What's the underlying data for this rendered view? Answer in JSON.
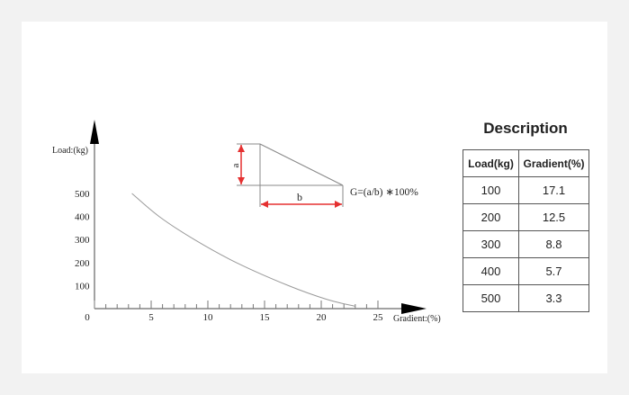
{
  "chart_data": {
    "type": "line",
    "xlabel": "Gradient:(%)",
    "ylabel": "Load:(kg)",
    "x_ticks": [
      "0",
      "5",
      "10",
      "15",
      "20",
      "25"
    ],
    "y_ticks": [
      "100",
      "200",
      "300",
      "400",
      "500"
    ],
    "xlim": [
      0,
      25
    ],
    "ylim": [
      0,
      500
    ],
    "series": [
      {
        "x": [
          3.3,
          5.7,
          8.8,
          12.5,
          17.1,
          20.5,
          23.0
        ],
        "y": [
          500,
          400,
          300,
          200,
          100,
          40,
          10
        ]
      }
    ]
  },
  "formula": {
    "label_a": "a",
    "label_b": "b",
    "text": "G=(a/b) ∗100%"
  },
  "description": {
    "title": "Description",
    "headers": [
      "Load(kg)",
      "Gradient(%)"
    ],
    "rows": [
      [
        "100",
        "17.1"
      ],
      [
        "200",
        "12.5"
      ],
      [
        "300",
        "8.8"
      ],
      [
        "400",
        "5.7"
      ],
      [
        "500",
        "3.3"
      ]
    ]
  }
}
